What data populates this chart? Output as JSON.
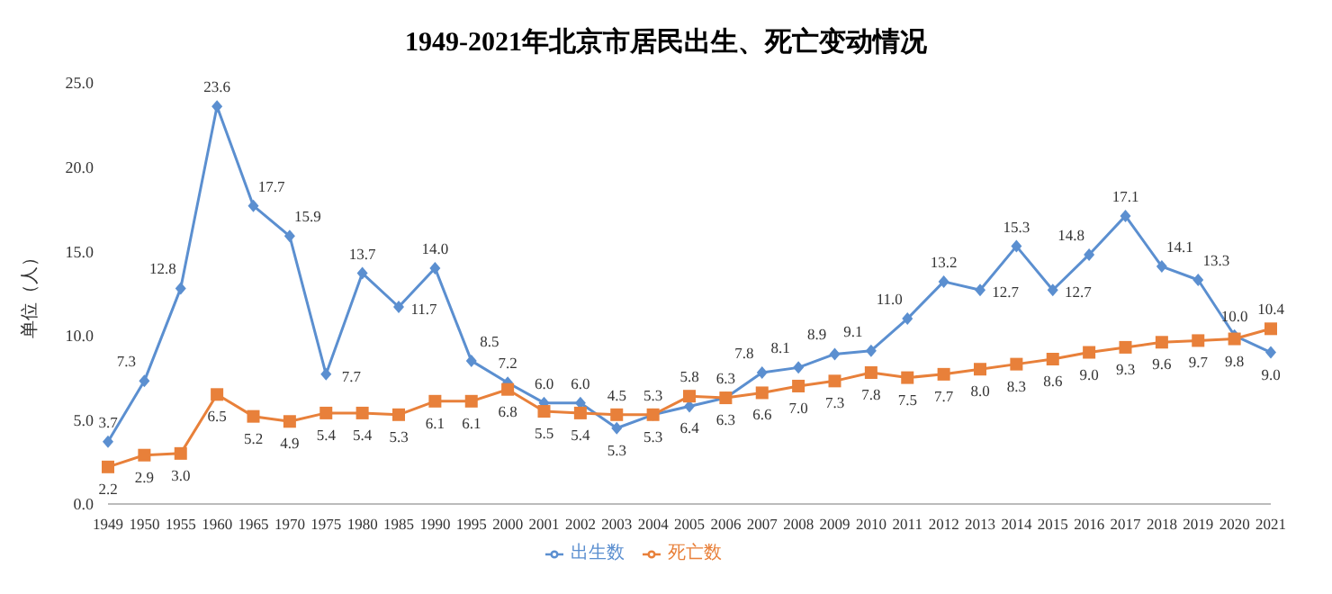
{
  "chart_data": {
    "type": "line",
    "title": "1949-2021年北京市居民出生、死亡变动情况",
    "ylabel": "单位（人）",
    "categories": [
      "1949",
      "1950",
      "1955",
      "1960",
      "1965",
      "1970",
      "1975",
      "1980",
      "1985",
      "1990",
      "1995",
      "2000",
      "2001",
      "2002",
      "2003",
      "2004",
      "2005",
      "2006",
      "2007",
      "2008",
      "2009",
      "2010",
      "2011",
      "2012",
      "2013",
      "2014",
      "2015",
      "2016",
      "2017",
      "2018",
      "2019",
      "2020",
      "2021"
    ],
    "ylim": [
      0,
      25
    ],
    "yticks": [
      {
        "value": 0,
        "label": "0.0"
      },
      {
        "value": 5,
        "label": "5.0"
      },
      {
        "value": 10,
        "label": "10.0"
      },
      {
        "value": 15,
        "label": "15.0"
      },
      {
        "value": 20,
        "label": "20.0"
      },
      {
        "value": 25,
        "label": "25.0"
      }
    ],
    "grid": false,
    "legend": "bottom",
    "line_style": "solid",
    "series": [
      {
        "name": "出生数",
        "color": "#5b8fd0",
        "marker": "diamond",
        "values": [
          3.7,
          7.3,
          12.8,
          23.6,
          17.7,
          15.9,
          7.7,
          13.7,
          11.7,
          14.0,
          8.5,
          7.2,
          6.0,
          6.0,
          4.5,
          5.3,
          5.8,
          6.3,
          7.8,
          8.1,
          8.9,
          9.1,
          11.0,
          13.2,
          12.7,
          15.3,
          12.7,
          14.8,
          17.1,
          14.1,
          13.3,
          10.0,
          9.0
        ],
        "value_labels": [
          "3.7",
          "7.3",
          "12.8",
          "23.6",
          "17.7",
          "15.9",
          "7.7",
          "13.7",
          "11.7",
          "14.0",
          "8.5",
          "7.2",
          "6.0",
          "6.0",
          "4.5",
          "5.3",
          "5.8",
          "6.3",
          "7.8",
          "8.1",
          "8.9",
          "9.1",
          "11.0",
          "13.2",
          "12.7",
          "15.3",
          "12.7",
          "14.8",
          "17.1",
          "14.1",
          "13.3",
          "10.0",
          "9.0"
        ]
      },
      {
        "name": "死亡数",
        "color": "#e8803a",
        "marker": "square",
        "values": [
          2.2,
          2.9,
          3.0,
          6.5,
          5.2,
          4.9,
          5.4,
          5.4,
          5.3,
          6.1,
          6.1,
          6.8,
          5.5,
          5.4,
          5.3,
          5.3,
          6.4,
          6.3,
          6.6,
          7.0,
          7.3,
          7.8,
          7.5,
          7.7,
          8.0,
          8.3,
          8.6,
          9.0,
          9.3,
          9.6,
          9.7,
          9.8,
          10.4
        ],
        "value_labels": [
          "2.2",
          "2.9",
          "3.0",
          "6.5",
          "5.2",
          "4.9",
          "5.4",
          "5.4",
          "5.3",
          "6.1",
          "6.1",
          "6.8",
          "5.5",
          "5.4",
          "5.3",
          "5.3",
          "6.4",
          "6.3",
          "6.6",
          "7.0",
          "7.3",
          "7.8",
          "7.5",
          "7.7",
          "8.0",
          "8.3",
          "8.6",
          "9.0",
          "9.3",
          "9.6",
          "9.7",
          "9.8",
          "10.4"
        ]
      }
    ]
  }
}
